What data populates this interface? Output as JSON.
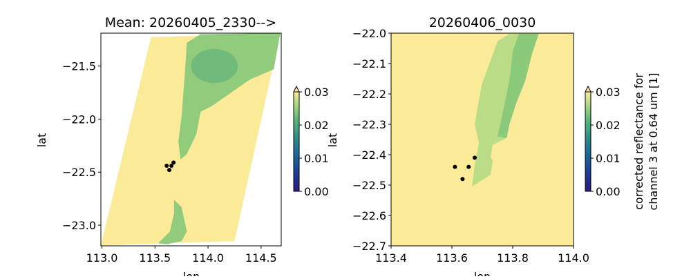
{
  "chart_data": [
    {
      "type": "heatmap",
      "title": "Mean: 20260405_2330-->",
      "xlabel": "lon",
      "ylabel": "lat",
      "xlim": [
        112.99,
        114.69
      ],
      "ylim": [
        -23.195,
        -21.19
      ],
      "xticks": [
        113.0,
        113.5,
        114.0,
        114.5
      ],
      "xtick_labels": [
        "113.0",
        "113.5",
        "114.0",
        "114.5"
      ],
      "yticks": [
        -21.5,
        -22.0,
        -22.5,
        -23.0
      ],
      "ytick_labels": [
        "−21.5",
        "−22.0",
        "−22.5",
        "−23.0"
      ],
      "swath": [
        [
          113.463,
          -21.227
        ],
        [
          114.68,
          -21.194
        ],
        [
          114.25,
          -23.15
        ],
        [
          112.99,
          -23.19
        ]
      ],
      "low_reflectance_regions": [
        [
          [
            113.8,
            -21.28
          ],
          [
            113.93,
            -21.2
          ],
          [
            114.68,
            -21.19
          ],
          [
            114.62,
            -21.53
          ],
          [
            114.39,
            -21.63
          ],
          [
            114.19,
            -21.77
          ],
          [
            114.03,
            -21.88
          ],
          [
            113.93,
            -21.93
          ],
          [
            113.89,
            -22.14
          ],
          [
            113.8,
            -22.33
          ],
          [
            113.74,
            -22.38
          ],
          [
            113.72,
            -22.21
          ],
          [
            113.75,
            -21.98
          ],
          [
            113.78,
            -21.59
          ]
        ],
        [
          [
            113.68,
            -22.76
          ],
          [
            113.75,
            -22.83
          ],
          [
            113.8,
            -23.06
          ],
          [
            113.75,
            -23.15
          ],
          [
            113.61,
            -23.18
          ],
          [
            113.53,
            -23.17
          ],
          [
            113.64,
            -23.06
          ],
          [
            113.68,
            -22.89
          ]
        ]
      ],
      "darker_core": {
        "lon": 114.06,
        "lat": -21.5,
        "rlon": 0.22,
        "rlat": 0.16
      },
      "points": [
        [
          113.61,
          -22.44
        ],
        [
          113.655,
          -22.44
        ],
        [
          113.635,
          -22.48
        ],
        [
          113.675,
          -22.41
        ]
      ],
      "colorbar": {
        "range": [
          0.0,
          0.03
        ],
        "tick_labels": [
          "0.00",
          "0.01",
          "0.02",
          "0.03"
        ],
        "extend": "max",
        "label": ""
      }
    },
    {
      "type": "heatmap",
      "title": "20260406_0030",
      "xlabel": "lon",
      "ylabel": "lat",
      "xlim": [
        113.4,
        114.0
      ],
      "ylim": [
        -22.7,
        -22.0
      ],
      "xticks": [
        113.4,
        113.6,
        113.8,
        114.0
      ],
      "xtick_labels": [
        "113.4",
        "113.6",
        "113.8",
        "114.0"
      ],
      "yticks": [
        -22.0,
        -22.1,
        -22.2,
        -22.3,
        -22.4,
        -22.5,
        -22.6,
        -22.7
      ],
      "ytick_labels": [
        "−22.0",
        "−22.1",
        "−22.2",
        "−22.3",
        "−22.4",
        "−22.5",
        "−22.6",
        "−22.7"
      ],
      "low_reflectance_regions": [
        [
          [
            113.789,
            -22.002
          ],
          [
            113.886,
            -22.002
          ],
          [
            113.864,
            -22.066
          ],
          [
            113.841,
            -22.157
          ],
          [
            113.811,
            -22.232
          ],
          [
            113.789,
            -22.3
          ],
          [
            113.78,
            -22.345
          ],
          [
            113.734,
            -22.368
          ],
          [
            113.727,
            -22.407
          ],
          [
            113.734,
            -22.42
          ],
          [
            113.727,
            -22.466
          ],
          [
            113.666,
            -22.505
          ],
          [
            113.675,
            -22.436
          ],
          [
            113.689,
            -22.361
          ],
          [
            113.675,
            -22.3
          ],
          [
            113.698,
            -22.17
          ],
          [
            113.75,
            -22.027
          ]
        ],
        [
          [
            113.82,
            -22.002
          ],
          [
            113.886,
            -22.002
          ],
          [
            113.864,
            -22.066
          ],
          [
            113.841,
            -22.157
          ],
          [
            113.811,
            -22.232
          ],
          [
            113.789,
            -22.3
          ],
          [
            113.78,
            -22.345
          ],
          [
            113.75,
            -22.34
          ],
          [
            113.77,
            -22.25
          ],
          [
            113.79,
            -22.15
          ],
          [
            113.8,
            -22.06
          ]
        ]
      ],
      "points": [
        [
          113.61,
          -22.44
        ],
        [
          113.655,
          -22.44
        ],
        [
          113.635,
          -22.48
        ],
        [
          113.675,
          -22.41
        ]
      ],
      "colorbar": {
        "range": [
          0.0,
          0.03
        ],
        "tick_labels": [
          "0.00",
          "0.01",
          "0.02",
          "0.03"
        ],
        "extend": "max",
        "label_lines": [
          "corrected reflectance for",
          "channel 3 at 0.64 um [1]"
        ]
      }
    }
  ],
  "colors": {
    "background": "#fbeb98",
    "low_outer": "#b5da86",
    "low_inner": "#88c879",
    "core": "#62b27c",
    "point": "#000000"
  }
}
